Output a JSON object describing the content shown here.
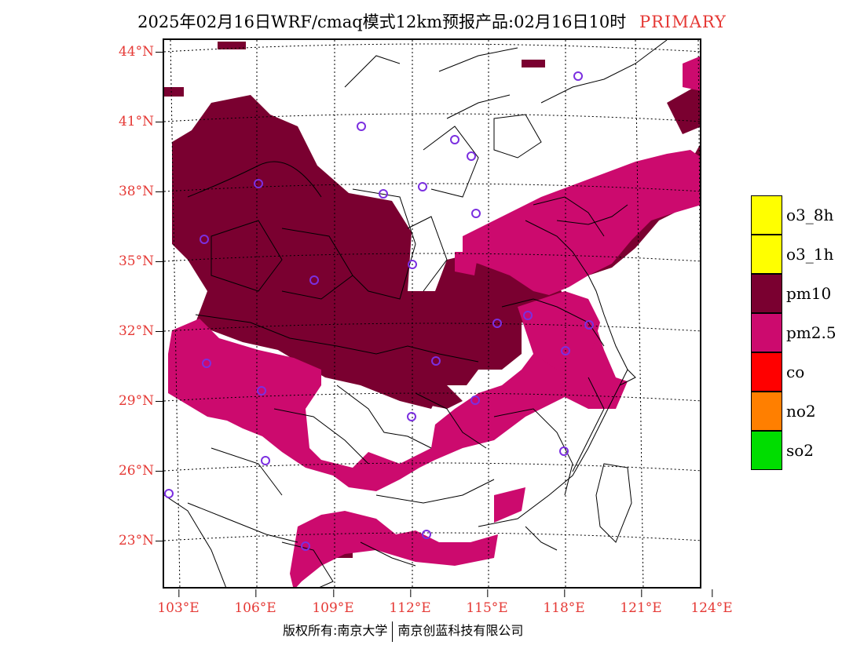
{
  "title": {
    "text": "2025年02月16日WRF/cmaq模式12km预报产品:02月16日10时",
    "tag": "PRIMARY"
  },
  "axes": {
    "lat_labels": [
      "44°N",
      "41°N",
      "38°N",
      "35°N",
      "32°N",
      "29°N",
      "26°N",
      "23°N"
    ],
    "lon_labels": [
      "103°E",
      "106°E",
      "109°E",
      "112°E",
      "115°E",
      "118°E",
      "121°E",
      "124°E"
    ]
  },
  "legend": {
    "items": [
      {
        "label": "o3_8h",
        "color": "#ffff00"
      },
      {
        "label": "o3_1h",
        "color": "#ffff00"
      },
      {
        "label": "pm10",
        "color": "#7a0030"
      },
      {
        "label": "pm2.5",
        "color": "#cc0a6e"
      },
      {
        "label": "co",
        "color": "#ff0000"
      },
      {
        "label": "no2",
        "color": "#ff7f00"
      },
      {
        "label": "so2",
        "color": "#00dd00"
      }
    ]
  },
  "footer": {
    "copyright": "版权所有:南京大学",
    "company": "南京创蓝科技有限公司"
  },
  "colors": {
    "pm10": "#7a0030",
    "pm25": "#cc0a6e",
    "station": "#7b2fe0",
    "label": "#e53935"
  }
}
